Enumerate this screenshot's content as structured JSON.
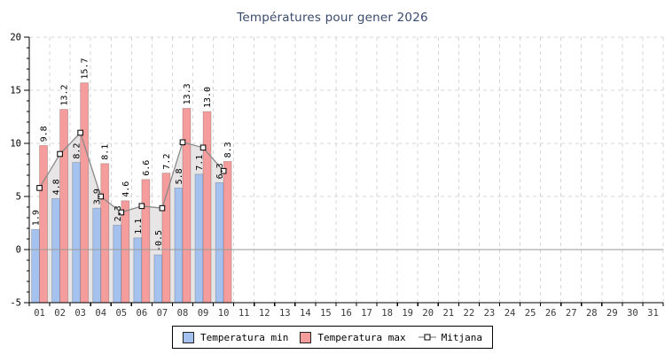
{
  "chart_data": {
    "type": "bar",
    "title": "Températures pour gener 2026",
    "title_color": "#3A4A6C",
    "categories": [
      "01",
      "02",
      "03",
      "04",
      "05",
      "06",
      "07",
      "08",
      "09",
      "10",
      "11",
      "12",
      "13",
      "14",
      "15",
      "16",
      "17",
      "18",
      "19",
      "20",
      "21",
      "22",
      "23",
      "24",
      "25",
      "26",
      "27",
      "28",
      "29",
      "30",
      "31"
    ],
    "series": [
      {
        "name": "Temperatura min",
        "type": "bar",
        "color": "#A5C2EE",
        "values": [
          1.9,
          4.8,
          8.2,
          3.9,
          2.3,
          1.1,
          -0.5,
          5.8,
          7.1,
          6.3
        ]
      },
      {
        "name": "Temperatura max",
        "type": "bar",
        "color": "#F59C9C",
        "values": [
          9.8,
          13.2,
          15.7,
          8.1,
          4.6,
          6.6,
          7.2,
          13.3,
          13.0,
          8.3
        ]
      },
      {
        "name": "Mitjana",
        "type": "line-area",
        "color": "#8A8A8A",
        "area_fill": "#E7E5E5",
        "marker": "white-square-black-border",
        "values": [
          5.8,
          9.0,
          11.0,
          5.0,
          3.5,
          4.1,
          3.9,
          10.1,
          9.6,
          7.4
        ]
      }
    ],
    "xlabel": "",
    "ylabel": "",
    "ylim": [
      -5,
      20
    ],
    "yticks": [
      -5,
      0,
      5,
      10,
      15,
      20
    ],
    "grid": "dashed-both-axes",
    "grid_color": "#D4D4D4",
    "zero_line_color": "#9A9A9A",
    "bar_value_labels": "rotated-90-one-decimal",
    "legend_position": "bottom-center"
  }
}
